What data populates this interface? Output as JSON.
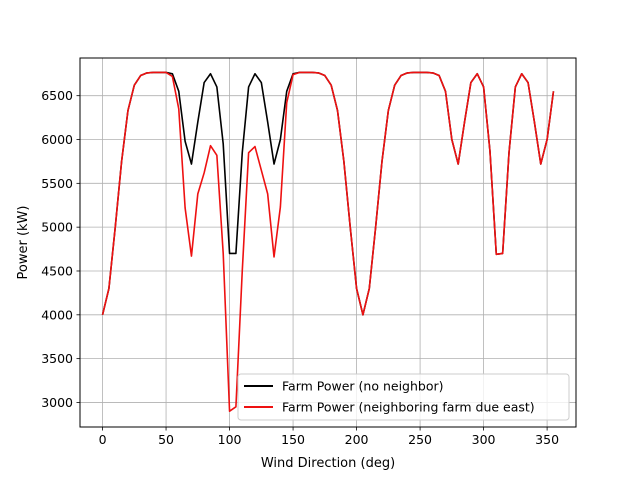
{
  "chart_data": {
    "type": "line",
    "title": "",
    "xlabel": "Wind Direction (deg)",
    "ylabel": "Power (kW)",
    "xlim": [
      -17.75,
      372.75
    ],
    "ylim": [
      2720,
      6930
    ],
    "x_ticks": [
      0,
      50,
      100,
      150,
      200,
      250,
      300,
      350
    ],
    "y_ticks": [
      3000,
      3500,
      4000,
      4500,
      5000,
      5500,
      6000,
      6500
    ],
    "grid": true,
    "legend_position": "lower right",
    "x": [
      0,
      5,
      10,
      15,
      20,
      25,
      30,
      35,
      40,
      45,
      50,
      55,
      60,
      65,
      70,
      75,
      80,
      85,
      90,
      95,
      100,
      105,
      110,
      115,
      120,
      125,
      130,
      135,
      140,
      145,
      150,
      155,
      160,
      165,
      170,
      175,
      180,
      185,
      190,
      195,
      200,
      205,
      210,
      215,
      220,
      225,
      230,
      235,
      240,
      245,
      250,
      255,
      260,
      265,
      270,
      275,
      280,
      285,
      290,
      295,
      300,
      305,
      310,
      315,
      320,
      325,
      330,
      335,
      340,
      345,
      350,
      355
    ],
    "series": [
      {
        "name": "Farm Power (no neighbor)",
        "color": "#000000",
        "values": [
          4000,
          4300,
          5000,
          5750,
          6330,
          6620,
          6730,
          6760,
          6765,
          6765,
          6765,
          6750,
          6550,
          5980,
          5720,
          6200,
          6650,
          6750,
          6600,
          5950,
          4700,
          4700,
          5850,
          6600,
          6750,
          6650,
          6200,
          5720,
          6000,
          6550,
          6750,
          6765,
          6765,
          6765,
          6760,
          6730,
          6620,
          6330,
          5750,
          5000,
          4300,
          4000,
          4300,
          5000,
          5750,
          6330,
          6620,
          6730,
          6760,
          6765,
          6765,
          6765,
          6760,
          6730,
          6550,
          6000,
          5720,
          6200,
          6650,
          6750,
          6600,
          5870,
          4690,
          4700,
          5850,
          6600,
          6750,
          6650,
          6200,
          5720,
          6000,
          6550
        ]
      },
      {
        "name": "Farm Power (neighboring farm due east)",
        "color": "#ee1111",
        "values": [
          4000,
          4300,
          5000,
          5750,
          6330,
          6620,
          6730,
          6760,
          6765,
          6765,
          6765,
          6720,
          6350,
          5220,
          4670,
          5380,
          5620,
          5930,
          5820,
          4700,
          2900,
          2950,
          4500,
          5850,
          5920,
          5650,
          5380,
          4660,
          5230,
          6420,
          6740,
          6765,
          6765,
          6765,
          6760,
          6730,
          6620,
          6330,
          5750,
          5000,
          4300,
          4000,
          4300,
          5000,
          5750,
          6330,
          6620,
          6730,
          6760,
          6765,
          6765,
          6765,
          6760,
          6730,
          6550,
          6000,
          5720,
          6200,
          6650,
          6750,
          6600,
          5870,
          4690,
          4700,
          5850,
          6600,
          6750,
          6650,
          6200,
          5720,
          6000,
          6550
        ]
      }
    ]
  }
}
